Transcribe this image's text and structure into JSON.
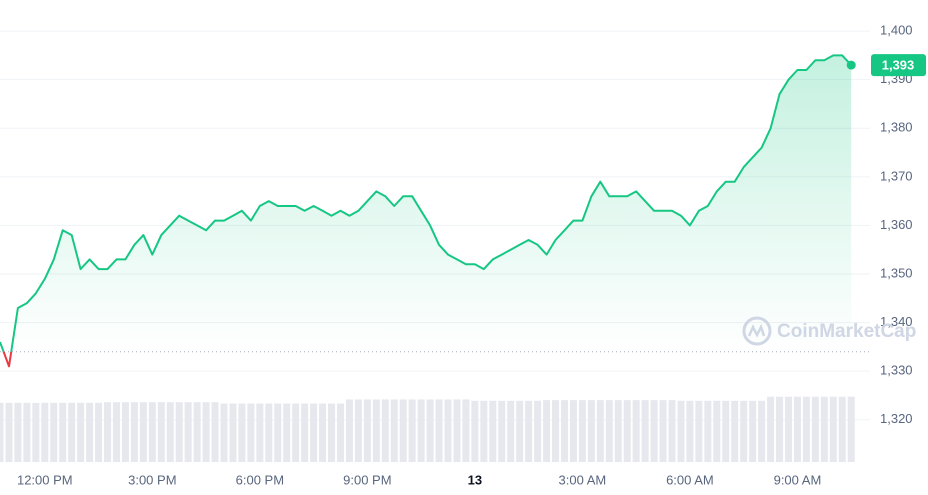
{
  "chart_data": {
    "type": "line",
    "values": [
      1336,
      1331,
      1343,
      1344,
      1346,
      1349,
      1353,
      1359,
      1358,
      1351,
      1353,
      1351,
      1351,
      1353,
      1353,
      1356,
      1358,
      1354,
      1358,
      1360,
      1362,
      1361,
      1360,
      1359,
      1361,
      1361,
      1362,
      1363,
      1361,
      1364,
      1365,
      1364,
      1364,
      1364,
      1363,
      1364,
      1363,
      1362,
      1363,
      1362,
      1363,
      1365,
      1367,
      1366,
      1364,
      1366,
      1366,
      1363,
      1360,
      1356,
      1354,
      1353,
      1352,
      1352,
      1351,
      1353,
      1354,
      1355,
      1356,
      1357,
      1356,
      1354,
      1357,
      1359,
      1361,
      1361,
      1366,
      1369,
      1366,
      1366,
      1366,
      1367,
      1365,
      1363,
      1363,
      1363,
      1362,
      1360,
      1363,
      1364,
      1367,
      1369,
      1369,
      1372,
      1374,
      1376,
      1380,
      1387,
      1390,
      1392,
      1392,
      1394,
      1394,
      1395,
      1395,
      1393
    ],
    "value_labels": [
      null,
      null,
      null,
      null,
      null,
      null,
      null,
      null,
      null,
      null,
      null,
      null,
      null,
      null,
      null,
      null,
      null,
      null,
      null,
      null,
      null,
      null,
      null,
      null,
      null,
      null,
      null,
      null,
      null,
      null,
      null,
      null,
      null,
      null,
      null,
      null,
      null,
      null,
      null,
      null,
      null,
      null,
      null,
      null,
      null,
      null,
      null,
      null,
      null,
      null,
      null,
      null,
      null,
      null,
      null,
      null,
      null,
      null,
      null,
      null,
      null,
      null,
      null,
      null,
      null,
      null,
      null,
      null,
      null,
      null,
      null,
      null,
      null,
      null,
      null,
      null,
      null,
      null,
      null,
      null,
      null,
      null,
      null,
      null,
      null,
      null,
      null,
      null,
      null,
      null,
      null,
      null,
      null,
      null,
      null,
      "1,393"
    ],
    "volumes": [
      87,
      87,
      87,
      87,
      87,
      87,
      87,
      87,
      87,
      87,
      87,
      87,
      88,
      88,
      88,
      88,
      88,
      88,
      88,
      88,
      88,
      88,
      88,
      88,
      88,
      86,
      86,
      86,
      86,
      86,
      86,
      86,
      86,
      86,
      86,
      86,
      86,
      86,
      86,
      92,
      92,
      92,
      92,
      92,
      92,
      92,
      92,
      92,
      92,
      92,
      92,
      92,
      92,
      90,
      90,
      90,
      90,
      90,
      90,
      90,
      90,
      91,
      91,
      91,
      91,
      91,
      91,
      91,
      91,
      91,
      91,
      91,
      91,
      91,
      91,
      91,
      90,
      90,
      90,
      90,
      90,
      90,
      90,
      90,
      90,
      90,
      96,
      96,
      96,
      96,
      96,
      96,
      96,
      96,
      96,
      96
    ],
    "volume_lim": [
      0,
      100
    ],
    "color": "#16c784",
    "down_color": "#ea3943",
    "reference_line": 1334,
    "watermark": "CoinMarketCap",
    "xlim": [
      0,
      95.2
    ],
    "xticks": [
      {
        "value": 5,
        "label": "12:00 PM"
      },
      {
        "value": 17,
        "label": "3:00 PM"
      },
      {
        "value": 29,
        "label": "6:00 PM"
      },
      {
        "value": 41,
        "label": "9:00 PM"
      },
      {
        "value": 53,
        "label": "13"
      },
      {
        "value": 65,
        "label": "3:00 AM"
      },
      {
        "value": 77,
        "label": "6:00 AM"
      },
      {
        "value": 89,
        "label": "9:00 AM"
      }
    ],
    "ylim": [
      1311.3,
      1406.4
    ],
    "yticks": [
      {
        "value": 1320,
        "label": "1,320"
      },
      {
        "value": 1330,
        "label": "1,330"
      },
      {
        "value": 1340,
        "label": "1,340"
      },
      {
        "value": 1350,
        "label": "1,350"
      },
      {
        "value": 1360,
        "label": "1,360"
      },
      {
        "value": 1370,
        "label": "1,370"
      },
      {
        "value": 1380,
        "label": "1,380"
      },
      {
        "value": 1390,
        "label": "1,390"
      },
      {
        "value": 1400,
        "label": "1,400"
      }
    ],
    "grid": true
  }
}
